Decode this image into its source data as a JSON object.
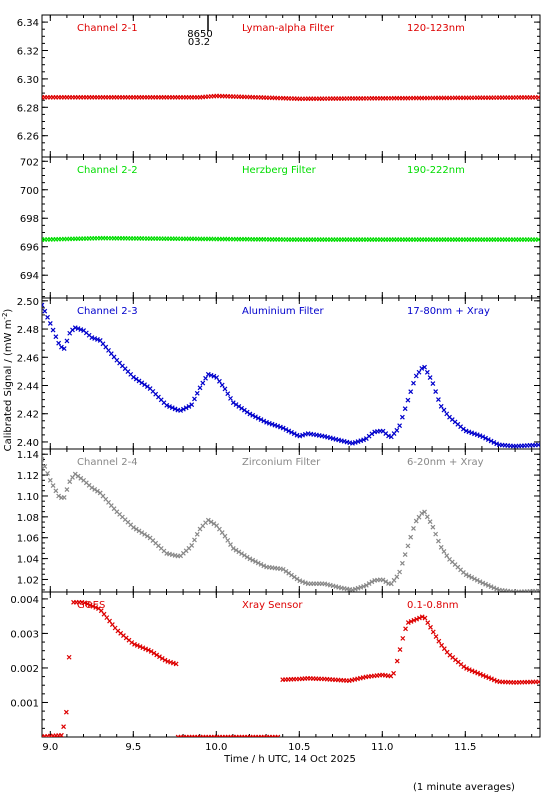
{
  "chart_data": {
    "type": "scatter",
    "xlabel": "Time / h UTC, 14 Oct 2025",
    "ylabel": "Calibrated Signal / (mW m",
    "ylabel_sup": "-2",
    "ylabel_end": ")",
    "xlim": [
      8.95,
      11.95
    ],
    "xticks": [
      9.0,
      9.5,
      10.0,
      10.5,
      11.0,
      11.5
    ],
    "xtick_labels": [
      "9.0",
      "9.5",
      "10.0",
      "10.5",
      "11.0",
      "11.5"
    ],
    "footnote": "(1 minute averages)",
    "marker_annotation": {
      "x": 9.95,
      "label_top": "8650",
      "label_bottom": "03.2"
    },
    "panels": [
      {
        "channel": "Channel 2-1",
        "filter": "Lyman-alpha Filter",
        "band": "120-123nm",
        "color": "#dd0000",
        "ylim": [
          6.245,
          6.345
        ],
        "yticks": [
          6.26,
          6.28,
          6.3,
          6.32,
          6.34
        ],
        "ytick_labels": [
          "6.26",
          "6.28",
          "6.30",
          "6.32",
          "6.34"
        ],
        "segments": [
          {
            "x_start": 8.95,
            "x_end": 11.95,
            "step": 0.0167,
            "y": [
              [
                8.95,
                6.287
              ],
              [
                9.9,
                6.287
              ],
              [
                10.0,
                6.288
              ],
              [
                10.5,
                6.286
              ],
              [
                11.95,
                6.287
              ]
            ]
          }
        ]
      },
      {
        "channel": "Channel 2-2",
        "filter": "Herzberg Filter",
        "band": "190-222nm",
        "color": "#00dd00",
        "ylim": [
          692.4,
          702.3
        ],
        "yticks": [
          694,
          696,
          698,
          700,
          702
        ],
        "ytick_labels": [
          "694",
          "696",
          "698",
          "700",
          "702"
        ],
        "segments": [
          {
            "x_start": 8.95,
            "x_end": 11.95,
            "step": 0.0167,
            "y": [
              [
                8.95,
                696.5
              ],
              [
                9.3,
                696.6
              ],
              [
                10.5,
                696.5
              ],
              [
                11.95,
                696.5
              ]
            ]
          }
        ]
      },
      {
        "channel": "Channel 2-3",
        "filter": "Aluminium Filter",
        "band": "17-80nm + Xray",
        "color": "#0000cc",
        "ylim": [
          2.395,
          2.502
        ],
        "yticks": [
          2.4,
          2.42,
          2.44,
          2.46,
          2.48,
          2.5
        ],
        "ytick_labels": [
          "2.40",
          "2.42",
          "2.44",
          "2.46",
          "2.48",
          "2.50"
        ],
        "segments": [
          {
            "x_start": 8.95,
            "x_end": 11.95,
            "step": 0.0167,
            "y": [
              [
                8.95,
                2.497
              ],
              [
                9.0,
                2.484
              ],
              [
                9.05,
                2.47
              ],
              [
                9.08,
                2.465
              ],
              [
                9.12,
                2.478
              ],
              [
                9.15,
                2.481
              ],
              [
                9.2,
                2.479
              ],
              [
                9.25,
                2.474
              ],
              [
                9.3,
                2.472
              ],
              [
                9.4,
                2.458
              ],
              [
                9.5,
                2.446
              ],
              [
                9.6,
                2.438
              ],
              [
                9.7,
                2.426
              ],
              [
                9.78,
                2.422
              ],
              [
                9.85,
                2.426
              ],
              [
                9.9,
                2.438
              ],
              [
                9.95,
                2.448
              ],
              [
                10.0,
                2.446
              ],
              [
                10.05,
                2.438
              ],
              [
                10.1,
                2.428
              ],
              [
                10.2,
                2.42
              ],
              [
                10.3,
                2.414
              ],
              [
                10.4,
                2.41
              ],
              [
                10.5,
                2.404
              ],
              [
                10.55,
                2.406
              ],
              [
                10.65,
                2.404
              ],
              [
                10.75,
                2.401
              ],
              [
                10.82,
                2.399
              ],
              [
                10.9,
                2.402
              ],
              [
                10.95,
                2.407
              ],
              [
                11.0,
                2.408
              ],
              [
                11.05,
                2.403
              ],
              [
                11.1,
                2.41
              ],
              [
                11.15,
                2.428
              ],
              [
                11.2,
                2.446
              ],
              [
                11.25,
                2.454
              ],
              [
                11.3,
                2.443
              ],
              [
                11.35,
                2.426
              ],
              [
                11.4,
                2.418
              ],
              [
                11.5,
                2.408
              ],
              [
                11.6,
                2.404
              ],
              [
                11.7,
                2.398
              ],
              [
                11.8,
                2.397
              ],
              [
                11.95,
                2.398
              ]
            ]
          }
        ]
      },
      {
        "channel": "Channel 2-4",
        "filter": "Zirconium Filter",
        "band": "6-20nm + Xray",
        "color": "#888888",
        "ylim": [
          1.008,
          1.145
        ],
        "yticks": [
          1.02,
          1.04,
          1.06,
          1.08,
          1.1,
          1.12,
          1.14
        ],
        "ytick_labels": [
          "1.02",
          "1.04",
          "1.06",
          "1.08",
          "1.10",
          "1.12",
          "1.14"
        ],
        "segments": [
          {
            "x_start": 8.95,
            "x_end": 11.95,
            "step": 0.0167,
            "y": [
              [
                8.95,
                1.135
              ],
              [
                9.0,
                1.115
              ],
              [
                9.05,
                1.1
              ],
              [
                9.08,
                1.097
              ],
              [
                9.12,
                1.115
              ],
              [
                9.15,
                1.121
              ],
              [
                9.2,
                1.115
              ],
              [
                9.25,
                1.108
              ],
              [
                9.3,
                1.103
              ],
              [
                9.4,
                1.085
              ],
              [
                9.5,
                1.07
              ],
              [
                9.6,
                1.06
              ],
              [
                9.7,
                1.045
              ],
              [
                9.78,
                1.042
              ],
              [
                9.85,
                1.052
              ],
              [
                9.9,
                1.068
              ],
              [
                9.95,
                1.077
              ],
              [
                10.0,
                1.072
              ],
              [
                10.05,
                1.062
              ],
              [
                10.1,
                1.05
              ],
              [
                10.2,
                1.04
              ],
              [
                10.3,
                1.032
              ],
              [
                10.4,
                1.03
              ],
              [
                10.5,
                1.019
              ],
              [
                10.55,
                1.016
              ],
              [
                10.65,
                1.016
              ],
              [
                10.75,
                1.012
              ],
              [
                10.82,
                1.01
              ],
              [
                10.9,
                1.014
              ],
              [
                10.95,
                1.019
              ],
              [
                11.0,
                1.02
              ],
              [
                11.05,
                1.015
              ],
              [
                11.1,
                1.025
              ],
              [
                11.15,
                1.05
              ],
              [
                11.2,
                1.075
              ],
              [
                11.25,
                1.086
              ],
              [
                11.3,
                1.072
              ],
              [
                11.35,
                1.052
              ],
              [
                11.4,
                1.04
              ],
              [
                11.5,
                1.025
              ],
              [
                11.6,
                1.017
              ],
              [
                11.7,
                1.01
              ],
              [
                11.8,
                1.008
              ],
              [
                11.95,
                1.009
              ]
            ]
          }
        ]
      },
      {
        "channel": "GOES",
        "filter": "Xray Sensor",
        "band": "0.1-0.8nm",
        "color": "#dd0000",
        "ylim": [
          0.0,
          0.0042
        ],
        "yticks": [
          0.001,
          0.002,
          0.003,
          0.004
        ],
        "ytick_labels": [
          "0.001",
          "0.002",
          "0.003",
          "0.004"
        ],
        "segments": [
          {
            "x_start": 8.95,
            "x_end": 9.07,
            "step": 0.0167,
            "y": [
              [
                8.95,
                1e-05
              ],
              [
                9.07,
                5e-05
              ]
            ]
          },
          {
            "x_start": 9.08,
            "x_end": 9.13,
            "step": 0.0167,
            "y": [
              [
                9.08,
                0.0003
              ],
              [
                9.1,
                0.0008
              ],
              [
                9.11,
                0.0018
              ],
              [
                9.12,
                0.0033
              ],
              [
                9.13,
                0.0039
              ]
            ]
          },
          {
            "x_start": 9.14,
            "x_end": 9.77,
            "step": 0.0167,
            "y": [
              [
                9.14,
                0.0039
              ],
              [
                9.2,
                0.0039
              ],
              [
                9.3,
                0.0037
              ],
              [
                9.4,
                0.0031
              ],
              [
                9.5,
                0.0027
              ],
              [
                9.6,
                0.0025
              ],
              [
                9.7,
                0.0022
              ],
              [
                9.77,
                0.0021
              ]
            ]
          },
          {
            "x_start": 9.77,
            "x_end": 10.38,
            "step": 0.0167,
            "y": [
              [
                9.77,
                0.0
              ],
              [
                10.38,
                0.0
              ]
            ]
          },
          {
            "x_start": 10.4,
            "x_end": 11.08,
            "step": 0.0167,
            "y": [
              [
                10.4,
                0.00166
              ],
              [
                10.5,
                0.00168
              ],
              [
                10.55,
                0.0017
              ],
              [
                10.65,
                0.00168
              ],
              [
                10.8,
                0.00163
              ],
              [
                10.9,
                0.00174
              ],
              [
                11.0,
                0.0018
              ],
              [
                11.05,
                0.00176
              ],
              [
                11.08,
                0.0019
              ]
            ]
          },
          {
            "x_start": 11.09,
            "x_end": 11.95,
            "step": 0.0167,
            "y": [
              [
                11.09,
                0.0022
              ],
              [
                11.12,
                0.0028
              ],
              [
                11.15,
                0.0033
              ],
              [
                11.2,
                0.0034
              ],
              [
                11.25,
                0.0035
              ],
              [
                11.3,
                0.0031
              ],
              [
                11.35,
                0.0027
              ],
              [
                11.4,
                0.0024
              ],
              [
                11.5,
                0.002
              ],
              [
                11.6,
                0.0018
              ],
              [
                11.7,
                0.0016
              ],
              [
                11.8,
                0.00158
              ],
              [
                11.95,
                0.0016
              ]
            ]
          }
        ]
      }
    ]
  }
}
